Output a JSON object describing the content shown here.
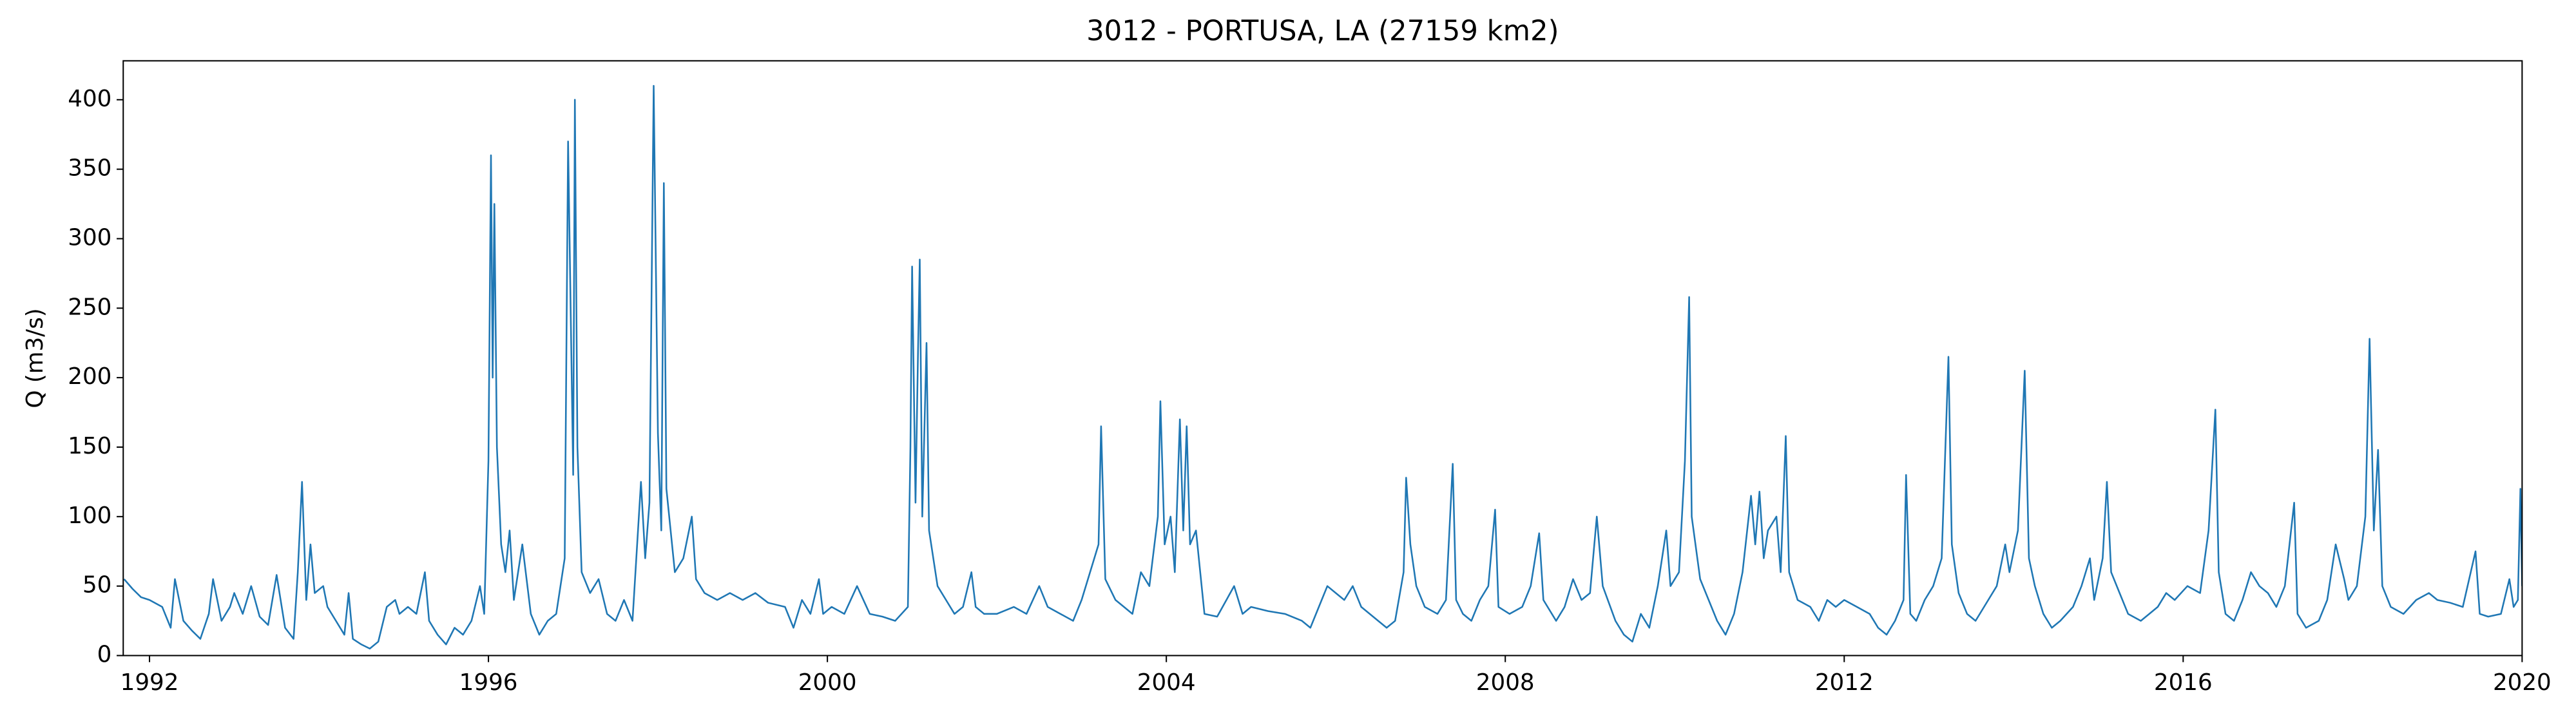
{
  "chart_data": {
    "type": "line",
    "title": "3012 - PORTUSA, LA (27159 km2)",
    "y_label": "Q (m3/s)",
    "color": "#1f77b4",
    "xlim": [
      1991.69,
      2020.0
    ],
    "xticks": [
      1992,
      1996,
      2000,
      2004,
      2008,
      2012,
      2016,
      2020
    ],
    "ylim": [
      0,
      428
    ],
    "yticks": [
      0,
      50,
      100,
      150,
      200,
      250,
      300,
      350,
      400
    ],
    "x": [
      1991.7,
      1991.8,
      1991.9,
      1992.0,
      1992.15,
      1992.25,
      1992.3,
      1992.4,
      1992.5,
      1992.6,
      1992.7,
      1992.75,
      1992.85,
      1992.95,
      1993.0,
      1993.1,
      1993.2,
      1993.3,
      1993.4,
      1993.5,
      1993.6,
      1993.7,
      1993.75,
      1993.8,
      1993.85,
      1993.9,
      1993.95,
      1994.05,
      1994.1,
      1994.2,
      1994.3,
      1994.35,
      1994.4,
      1994.5,
      1994.6,
      1994.7,
      1994.8,
      1994.9,
      1994.95,
      1995.05,
      1995.15,
      1995.25,
      1995.3,
      1995.4,
      1995.5,
      1995.6,
      1995.7,
      1995.8,
      1995.9,
      1995.95,
      1996.0,
      1996.03,
      1996.05,
      1996.07,
      1996.1,
      1996.15,
      1996.2,
      1996.25,
      1996.3,
      1996.4,
      1996.5,
      1996.6,
      1996.7,
      1996.8,
      1996.9,
      1996.94,
      1997.0,
      1997.02,
      1997.05,
      1997.1,
      1997.2,
      1997.3,
      1997.4,
      1997.5,
      1997.6,
      1997.7,
      1997.8,
      1997.85,
      1997.9,
      1997.95,
      1998.0,
      1998.04,
      1998.07,
      1998.1,
      1998.2,
      1998.3,
      1998.4,
      1998.45,
      1998.55,
      1998.7,
      1998.85,
      1999.0,
      1999.15,
      1999.3,
      1999.5,
      1999.6,
      1999.7,
      1999.8,
      1999.9,
      1999.95,
      2000.05,
      2000.2,
      2000.35,
      2000.5,
      2000.65,
      2000.8,
      2000.95,
      2000.98,
      2001.0,
      2001.04,
      2001.07,
      2001.09,
      2001.12,
      2001.17,
      2001.2,
      2001.3,
      2001.4,
      2001.5,
      2001.6,
      2001.7,
      2001.75,
      2001.85,
      2002.0,
      2002.2,
      2002.35,
      2002.5,
      2002.6,
      2002.75,
      2002.9,
      2003.0,
      2003.1,
      2003.2,
      2003.23,
      2003.28,
      2003.4,
      2003.5,
      2003.6,
      2003.7,
      2003.8,
      2003.9,
      2003.93,
      2003.98,
      2004.05,
      2004.1,
      2004.16,
      2004.2,
      2004.24,
      2004.28,
      2004.35,
      2004.45,
      2004.6,
      2004.8,
      2004.9,
      2005.0,
      2005.2,
      2005.4,
      2005.6,
      2005.7,
      2005.8,
      2005.9,
      2006.0,
      2006.1,
      2006.2,
      2006.3,
      2006.5,
      2006.6,
      2006.7,
      2006.8,
      2006.83,
      2006.88,
      2006.95,
      2007.05,
      2007.2,
      2007.3,
      2007.38,
      2007.42,
      2007.5,
      2007.6,
      2007.7,
      2007.8,
      2007.88,
      2007.92,
      2008.05,
      2008.2,
      2008.3,
      2008.4,
      2008.45,
      2008.6,
      2008.7,
      2008.8,
      2008.9,
      2009.0,
      2009.08,
      2009.15,
      2009.3,
      2009.4,
      2009.5,
      2009.6,
      2009.7,
      2009.8,
      2009.9,
      2009.95,
      2010.05,
      2010.12,
      2010.17,
      2010.2,
      2010.3,
      2010.4,
      2010.5,
      2010.6,
      2010.7,
      2010.8,
      2010.9,
      2010.95,
      2011.0,
      2011.05,
      2011.1,
      2011.2,
      2011.25,
      2011.31,
      2011.35,
      2011.45,
      2011.6,
      2011.7,
      2011.8,
      2011.9,
      2012.0,
      2012.15,
      2012.3,
      2012.4,
      2012.5,
      2012.6,
      2012.7,
      2012.73,
      2012.78,
      2012.85,
      2012.95,
      2013.05,
      2013.15,
      2013.23,
      2013.27,
      2013.35,
      2013.45,
      2013.55,
      2013.7,
      2013.8,
      2013.9,
      2013.95,
      2014.05,
      2014.13,
      2014.18,
      2014.25,
      2014.35,
      2014.45,
      2014.55,
      2014.7,
      2014.8,
      2014.9,
      2014.95,
      2015.05,
      2015.1,
      2015.15,
      2015.25,
      2015.35,
      2015.5,
      2015.6,
      2015.7,
      2015.8,
      2015.9,
      2016.05,
      2016.2,
      2016.3,
      2016.38,
      2016.42,
      2016.5,
      2016.6,
      2016.7,
      2016.8,
      2016.9,
      2017.0,
      2017.1,
      2017.2,
      2017.31,
      2017.35,
      2017.45,
      2017.6,
      2017.7,
      2017.8,
      2017.9,
      2017.95,
      2018.05,
      2018.15,
      2018.2,
      2018.25,
      2018.3,
      2018.35,
      2018.45,
      2018.6,
      2018.75,
      2018.9,
      2019.0,
      2019.15,
      2019.3,
      2019.45,
      2019.5,
      2019.6,
      2019.75,
      2019.85,
      2019.9,
      2019.95,
      2019.98,
      2020.0
    ],
    "values": [
      55,
      48,
      42,
      40,
      35,
      20,
      55,
      25,
      18,
      12,
      30,
      55,
      25,
      35,
      45,
      30,
      50,
      28,
      22,
      58,
      20,
      12,
      60,
      125,
      40,
      80,
      45,
      50,
      35,
      25,
      15,
      45,
      12,
      8,
      5,
      10,
      35,
      40,
      30,
      35,
      30,
      60,
      25,
      15,
      8,
      20,
      15,
      25,
      50,
      30,
      140,
      360,
      200,
      325,
      150,
      80,
      60,
      90,
      40,
      80,
      30,
      15,
      25,
      30,
      70,
      370,
      130,
      400,
      150,
      60,
      45,
      55,
      30,
      25,
      40,
      25,
      125,
      70,
      110,
      410,
      160,
      90,
      340,
      120,
      60,
      70,
      100,
      55,
      45,
      40,
      45,
      40,
      45,
      38,
      35,
      20,
      40,
      30,
      55,
      30,
      35,
      30,
      50,
      30,
      28,
      25,
      35,
      150,
      280,
      110,
      220,
      285,
      100,
      225,
      90,
      50,
      40,
      30,
      35,
      60,
      35,
      30,
      30,
      35,
      30,
      50,
      35,
      30,
      25,
      40,
      60,
      80,
      165,
      55,
      40,
      35,
      30,
      60,
      50,
      100,
      183,
      80,
      100,
      60,
      170,
      90,
      165,
      80,
      90,
      30,
      28,
      50,
      30,
      35,
      32,
      30,
      25,
      20,
      35,
      50,
      45,
      40,
      50,
      35,
      25,
      20,
      25,
      60,
      128,
      80,
      50,
      35,
      30,
      40,
      138,
      40,
      30,
      25,
      40,
      50,
      105,
      35,
      30,
      35,
      50,
      88,
      40,
      25,
      35,
      55,
      40,
      45,
      100,
      50,
      25,
      15,
      10,
      30,
      20,
      50,
      90,
      50,
      60,
      140,
      258,
      100,
      55,
      40,
      25,
      15,
      30,
      60,
      115,
      80,
      118,
      70,
      90,
      100,
      60,
      158,
      60,
      40,
      35,
      25,
      40,
      35,
      40,
      35,
      30,
      20,
      15,
      25,
      40,
      130,
      30,
      25,
      40,
      50,
      70,
      215,
      80,
      45,
      30,
      25,
      40,
      50,
      80,
      60,
      90,
      205,
      70,
      50,
      30,
      20,
      25,
      35,
      50,
      70,
      40,
      70,
      125,
      60,
      45,
      30,
      25,
      30,
      35,
      45,
      40,
      50,
      45,
      90,
      177,
      60,
      30,
      25,
      40,
      60,
      50,
      45,
      35,
      50,
      110,
      30,
      20,
      25,
      40,
      80,
      55,
      40,
      50,
      100,
      228,
      90,
      148,
      50,
      35,
      30,
      40,
      45,
      40,
      38,
      35,
      75,
      30,
      28,
      30,
      55,
      35,
      40,
      120,
      50
    ]
  }
}
